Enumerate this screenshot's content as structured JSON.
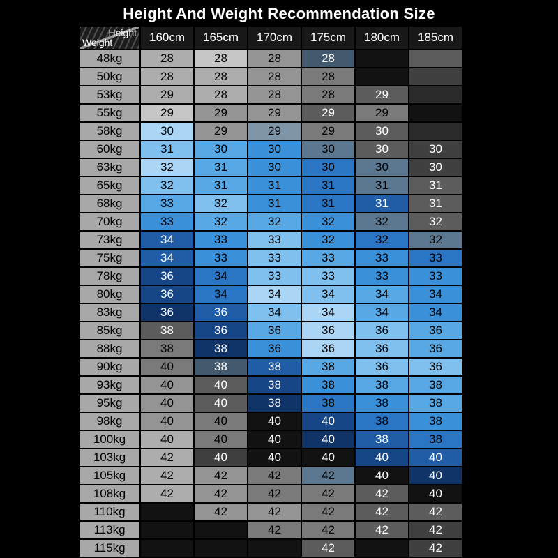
{
  "chart_data": {
    "type": "table",
    "title": "Height And Weight Recommendation Size",
    "corner": {
      "height_label": "Height",
      "weight_label": "Weight"
    },
    "columns": [
      "160cm",
      "165cm",
      "170cm",
      "175cm",
      "180cm",
      "185cm"
    ],
    "rows": [
      {
        "weight": "48kg",
        "sizes": [
          "28",
          "28",
          "28",
          "28",
          "",
          ""
        ]
      },
      {
        "weight": "50kg",
        "sizes": [
          "28",
          "28",
          "28",
          "28",
          "",
          ""
        ]
      },
      {
        "weight": "53kg",
        "sizes": [
          "29",
          "28",
          "28",
          "28",
          "29",
          ""
        ]
      },
      {
        "weight": "55kg",
        "sizes": [
          "29",
          "29",
          "29",
          "29",
          "29",
          ""
        ]
      },
      {
        "weight": "58kg",
        "sizes": [
          "30",
          "29",
          "29",
          "29",
          "30",
          ""
        ]
      },
      {
        "weight": "60kg",
        "sizes": [
          "31",
          "30",
          "30",
          "30",
          "30",
          "30"
        ]
      },
      {
        "weight": "63kg",
        "sizes": [
          "32",
          "31",
          "30",
          "30",
          "30",
          "30"
        ]
      },
      {
        "weight": "65kg",
        "sizes": [
          "32",
          "31",
          "31",
          "31",
          "31",
          "31"
        ]
      },
      {
        "weight": "68kg",
        "sizes": [
          "33",
          "32",
          "31",
          "31",
          "31",
          "31"
        ]
      },
      {
        "weight": "70kg",
        "sizes": [
          "33",
          "32",
          "32",
          "32",
          "32",
          "32"
        ]
      },
      {
        "weight": "73kg",
        "sizes": [
          "34",
          "33",
          "33",
          "32",
          "32",
          "32"
        ]
      },
      {
        "weight": "75kg",
        "sizes": [
          "34",
          "33",
          "33",
          "33",
          "33",
          "33"
        ]
      },
      {
        "weight": "78kg",
        "sizes": [
          "36",
          "34",
          "33",
          "33",
          "33",
          "33"
        ]
      },
      {
        "weight": "80kg",
        "sizes": [
          "36",
          "34",
          "34",
          "34",
          "34",
          "34"
        ]
      },
      {
        "weight": "83kg",
        "sizes": [
          "36",
          "36",
          "34",
          "34",
          "34",
          "34"
        ]
      },
      {
        "weight": "85kg",
        "sizes": [
          "38",
          "36",
          "36",
          "36",
          "36",
          "36"
        ]
      },
      {
        "weight": "88kg",
        "sizes": [
          "38",
          "38",
          "36",
          "36",
          "36",
          "36"
        ]
      },
      {
        "weight": "90kg",
        "sizes": [
          "40",
          "38",
          "38",
          "38",
          "36",
          "36"
        ]
      },
      {
        "weight": "93kg",
        "sizes": [
          "40",
          "40",
          "38",
          "38",
          "38",
          "38"
        ]
      },
      {
        "weight": "95kg",
        "sizes": [
          "40",
          "40",
          "38",
          "38",
          "38",
          "38"
        ]
      },
      {
        "weight": "98kg",
        "sizes": [
          "40",
          "40",
          "40",
          "40",
          "38",
          "38"
        ]
      },
      {
        "weight": "100kg",
        "sizes": [
          "40",
          "40",
          "40",
          "40",
          "38",
          "38"
        ]
      },
      {
        "weight": "103kg",
        "sizes": [
          "42",
          "40",
          "40",
          "40",
          "40",
          "40"
        ]
      },
      {
        "weight": "105kg",
        "sizes": [
          "42",
          "42",
          "42",
          "42",
          "40",
          "40"
        ]
      },
      {
        "weight": "108kg",
        "sizes": [
          "42",
          "42",
          "42",
          "42",
          "42",
          "40"
        ]
      },
      {
        "weight": "110kg",
        "sizes": [
          "",
          "42",
          "42",
          "42",
          "42",
          "42"
        ]
      },
      {
        "weight": "113kg",
        "sizes": [
          "",
          "",
          "42",
          "42",
          "42",
          "42"
        ]
      },
      {
        "weight": "115kg",
        "sizes": [
          "",
          "",
          "",
          "42",
          "",
          "42"
        ]
      }
    ]
  },
  "colors": {
    "background": "#000000",
    "title_text": "#ffffff",
    "header_bg": "#181818",
    "header_text": "#ffffff",
    "weight_cell_bg": "#a8a8a8",
    "weight_cell_text": "#000000",
    "palette": {
      "g1": "#c6c6c6",
      "g2": "#adadad",
      "g3": "#949494",
      "g4": "#7a7a7a",
      "g5": "#5c5c5c",
      "g6": "#404040",
      "g7": "#2a2a2a",
      "k": "#121212",
      "b1": "#aad5f5",
      "b2": "#7fc0ee",
      "b3": "#58a8e6",
      "b4": "#3b90da",
      "b5": "#2b76c4",
      "b6": "#205da6",
      "b7": "#174687",
      "b8": "#103468",
      "s1": "#7e95a8",
      "s2": "#5c7891",
      "s3": "#42596e"
    },
    "cell_colors": [
      [
        "g2",
        "g1",
        "g3",
        "s3",
        "k",
        "g5"
      ],
      [
        "g2",
        "g2",
        "g3",
        "g4",
        "k",
        "g6"
      ],
      [
        "g2",
        "g2",
        "g3",
        "g4",
        "g5",
        "g7"
      ],
      [
        "g1",
        "g3",
        "g3",
        "g5",
        "g4",
        "k"
      ],
      [
        "b1",
        "g3",
        "s1",
        "g4",
        "g5",
        "g7"
      ],
      [
        "b2",
        "b3",
        "b4",
        "s2",
        "g5",
        "g6"
      ],
      [
        "b1",
        "b3",
        "b4",
        "b5",
        "s2",
        "g6"
      ],
      [
        "b2",
        "b3",
        "b4",
        "b5",
        "s2",
        "g5"
      ],
      [
        "b3",
        "b2",
        "b4",
        "b5",
        "b6",
        "g5"
      ],
      [
        "b4",
        "b3",
        "b3",
        "b4",
        "s2",
        "g5"
      ],
      [
        "b6",
        "b4",
        "b2",
        "b4",
        "b5",
        "s2"
      ],
      [
        "b6",
        "b4",
        "b2",
        "b3",
        "b4",
        "b5"
      ],
      [
        "b7",
        "b5",
        "b2",
        "b2",
        "b4",
        "b4"
      ],
      [
        "b7",
        "b5",
        "b1",
        "b2",
        "b3",
        "b4"
      ],
      [
        "b8",
        "b6",
        "b2",
        "b1",
        "b3",
        "b4"
      ],
      [
        "g5",
        "b7",
        "b3",
        "b1",
        "b2",
        "b3"
      ],
      [
        "g4",
        "b8",
        "b4",
        "b1",
        "b2",
        "b3"
      ],
      [
        "g4",
        "s3",
        "b6",
        "b3",
        "b2",
        "b2"
      ],
      [
        "g3",
        "g5",
        "b7",
        "b4",
        "b3",
        "b3"
      ],
      [
        "g3",
        "g5",
        "b8",
        "b5",
        "b4",
        "b3"
      ],
      [
        "g3",
        "g4",
        "k",
        "b7",
        "b5",
        "b4"
      ],
      [
        "g2",
        "g4",
        "k",
        "b8",
        "b6",
        "b5"
      ],
      [
        "g2",
        "g6",
        "k",
        "k",
        "b7",
        "b6"
      ],
      [
        "g2",
        "g3",
        "g4",
        "s2",
        "k",
        "b8"
      ],
      [
        "g2",
        "g3",
        "g4",
        "g4",
        "g5",
        "k"
      ],
      [
        "k",
        "g3",
        "g3",
        "g4",
        "g5",
        "g5"
      ],
      [
        "k",
        "k",
        "g4",
        "g4",
        "g5",
        "g6"
      ],
      [
        "k",
        "k",
        "k",
        "g5",
        "k",
        "g6"
      ]
    ]
  }
}
